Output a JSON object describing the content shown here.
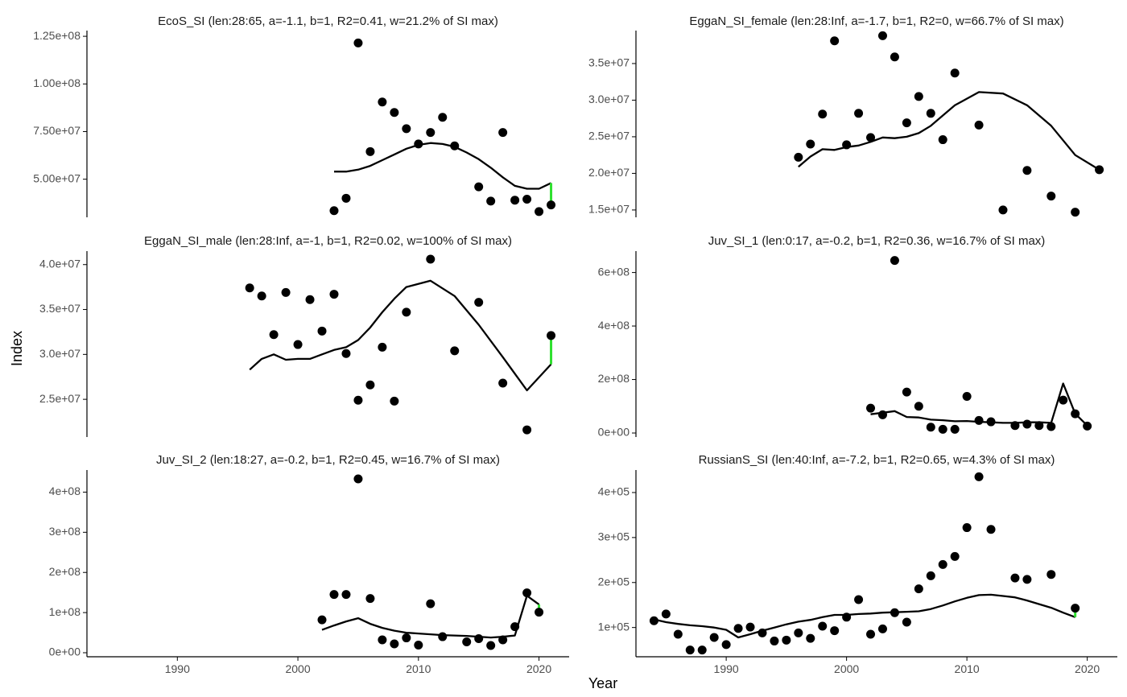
{
  "figure": {
    "ylabel": "Index",
    "xlabel": "Year",
    "colors": {
      "points": "#000000",
      "fit_line": "#000000",
      "last_residual": "#2ee02e"
    }
  },
  "chart_data": [
    {
      "type": "scatter",
      "title": "EcoS_SI (len:28:65, a=-1.1, b=1, R2=0.41, w=21.2% of SI max)",
      "xlim": [
        1982.5,
        2022.5
      ],
      "ylim": [
        30000000,
        128000000
      ],
      "y_ticks": [
        50000000,
        75000000,
        100000000,
        125000000
      ],
      "y_tick_labels": [
        "5.00e+07",
        "7.50e+07",
        "1.00e+08",
        "1.25e+08"
      ],
      "x_ticks": [],
      "x_tick_labels": [],
      "series": [
        {
          "name": "observed",
          "type": "scatter",
          "x": [
            2003,
            2004,
            2005,
            2006,
            2007,
            2008,
            2009,
            2010,
            2011,
            2012,
            2013,
            2015,
            2016,
            2017,
            2018,
            2019,
            2020,
            2021
          ],
          "y": [
            33500000,
            40000000,
            121500000,
            64500000,
            90500000,
            85000000,
            76500000,
            68500000,
            74500000,
            82500000,
            67500000,
            46000000,
            38500000,
            74500000,
            39000000,
            39500000,
            33000000,
            36500000
          ]
        },
        {
          "name": "fitted",
          "type": "line",
          "x": [
            2003,
            2004,
            2005,
            2006,
            2007,
            2008,
            2009,
            2010,
            2011,
            2012,
            2013,
            2014,
            2015,
            2016,
            2017,
            2018,
            2019,
            2020,
            2021
          ],
          "y": [
            54000000,
            54000000,
            55000000,
            57000000,
            60000000,
            63000000,
            66000000,
            68000000,
            69000000,
            68500000,
            67000000,
            64000000,
            60500000,
            56000000,
            51000000,
            46500000,
            45000000,
            45000000,
            48000000
          ]
        }
      ],
      "last_residual": {
        "x": 2021,
        "y_from": 48000000,
        "y_to": 36500000
      }
    },
    {
      "type": "scatter",
      "title": "EggaN_SI_female (len:28:Inf, a=-1.7, b=1, R2=0, w=66.7% of SI max)",
      "xlim": [
        1982.5,
        2022.5
      ],
      "ylim": [
        14000000,
        39500000
      ],
      "y_ticks": [
        15000000,
        20000000,
        25000000,
        30000000,
        35000000
      ],
      "y_tick_labels": [
        "1.5e+07",
        "2.0e+07",
        "2.5e+07",
        "3.0e+07",
        "3.5e+07"
      ],
      "x_ticks": [],
      "x_tick_labels": [],
      "series": [
        {
          "name": "observed",
          "type": "scatter",
          "x": [
            1996,
            1997,
            1998,
            1999,
            2000,
            2001,
            2002,
            2003,
            2004,
            2005,
            2006,
            2007,
            2008,
            2009,
            2011,
            2013,
            2015,
            2017,
            2019,
            2021
          ],
          "y": [
            22200000,
            24000000,
            28100000,
            38100000,
            23900000,
            28200000,
            24900000,
            38800000,
            35900000,
            26900000,
            30500000,
            28200000,
            24600000,
            33700000,
            26600000,
            15000000,
            20400000,
            16900000,
            14700000,
            20500000
          ]
        },
        {
          "name": "fitted",
          "type": "line",
          "x": [
            1996,
            1997,
            1998,
            1999,
            2000,
            2001,
            2002,
            2003,
            2004,
            2005,
            2006,
            2007,
            2008,
            2009,
            2011,
            2013,
            2015,
            2017,
            2019,
            2021
          ],
          "y": [
            20900000,
            22300000,
            23300000,
            23200000,
            23600000,
            23800000,
            24300000,
            24900000,
            24800000,
            25000000,
            25500000,
            26500000,
            27900000,
            29300000,
            31100000,
            30900000,
            29300000,
            26500000,
            22500000,
            20500000
          ]
        }
      ],
      "last_residual": null
    },
    {
      "type": "scatter",
      "title": "EggaN_SI_male (len:28:Inf, a=-1, b=1, R2=0.02, w=100% of SI max)",
      "xlim": [
        1982.5,
        2022.5
      ],
      "ylim": [
        20800000,
        41500000
      ],
      "y_ticks": [
        25000000,
        30000000,
        35000000,
        40000000
      ],
      "y_tick_labels": [
        "2.5e+07",
        "3.0e+07",
        "3.5e+07",
        "4.0e+07"
      ],
      "x_ticks": [],
      "x_tick_labels": [],
      "series": [
        {
          "name": "observed",
          "type": "scatter",
          "x": [
            1996,
            1997,
            1998,
            1999,
            2000,
            2001,
            2002,
            2003,
            2004,
            2005,
            2006,
            2007,
            2008,
            2009,
            2011,
            2013,
            2015,
            2017,
            2019,
            2021
          ],
          "y": [
            37400000,
            36500000,
            32200000,
            36900000,
            31100000,
            36100000,
            32600000,
            36700000,
            30100000,
            24900000,
            26600000,
            30800000,
            24800000,
            34700000,
            40600000,
            30400000,
            35800000,
            26800000,
            21600000,
            32100000
          ]
        },
        {
          "name": "fitted",
          "type": "line",
          "x": [
            1996,
            1997,
            1998,
            1999,
            2000,
            2001,
            2002,
            2003,
            2004,
            2005,
            2006,
            2007,
            2008,
            2009,
            2011,
            2013,
            2015,
            2017,
            2019,
            2021
          ],
          "y": [
            28300000,
            29500000,
            30000000,
            29400000,
            29500000,
            29500000,
            30000000,
            30500000,
            30800000,
            31600000,
            33000000,
            34700000,
            36200000,
            37500000,
            38200000,
            36500000,
            33300000,
            29700000,
            26000000,
            28900000
          ]
        }
      ],
      "last_residual": {
        "x": 2021,
        "y_from": 28900000,
        "y_to": 32100000
      }
    },
    {
      "type": "scatter",
      "title": "Juv_SI_1 (len:0:17, a=-0.2, b=1, R2=0.36, w=16.7% of SI max)",
      "xlim": [
        1982.5,
        2022.5
      ],
      "ylim": [
        -15000000,
        680000000
      ],
      "y_ticks": [
        0,
        200000000,
        400000000,
        600000000
      ],
      "y_tick_labels": [
        "0e+00",
        "2e+08",
        "4e+08",
        "6e+08"
      ],
      "x_ticks": [],
      "x_tick_labels": [],
      "series": [
        {
          "name": "observed",
          "type": "scatter",
          "x": [
            2002,
            2003,
            2004,
            2005,
            2006,
            2007,
            2008,
            2009,
            2010,
            2011,
            2012,
            2014,
            2015,
            2016,
            2017,
            2018,
            2019,
            2020
          ],
          "y": [
            93000000,
            68000000,
            645000000,
            153000000,
            100000000,
            22000000,
            14000000,
            14000000,
            137000000,
            47000000,
            42000000,
            28000000,
            33000000,
            28000000,
            24000000,
            123000000,
            72000000,
            26000000
          ]
        },
        {
          "name": "fitted",
          "type": "line",
          "x": [
            2002,
            2003,
            2004,
            2005,
            2006,
            2007,
            2008,
            2009,
            2010,
            2011,
            2012,
            2013,
            2014,
            2015,
            2016,
            2017,
            2018,
            2019,
            2020
          ],
          "y": [
            70000000,
            76000000,
            82000000,
            60000000,
            58000000,
            50000000,
            48000000,
            44000000,
            45000000,
            42000000,
            40000000,
            38000000,
            38000000,
            40000000,
            40000000,
            38000000,
            185000000,
            72000000,
            28000000
          ]
        }
      ],
      "last_residual": null
    },
    {
      "type": "scatter",
      "title": "Juv_SI_2 (len:18:27, a=-0.2, b=1, R2=0.45, w=16.7% of SI max)",
      "xlim": [
        1982.5,
        2022.5
      ],
      "ylim": [
        -10000000,
        455000000
      ],
      "y_ticks": [
        0,
        100000000,
        200000000,
        300000000,
        400000000
      ],
      "y_tick_labels": [
        "0e+00",
        "1e+08",
        "2e+08",
        "3e+08",
        "4e+08"
      ],
      "x_ticks": [
        1990,
        2000,
        2010,
        2020
      ],
      "x_tick_labels": [
        "1990",
        "2000",
        "2010",
        "2020"
      ],
      "series": [
        {
          "name": "observed",
          "type": "scatter",
          "x": [
            2002,
            2003,
            2004,
            2005,
            2006,
            2007,
            2008,
            2009,
            2010,
            2011,
            2012,
            2014,
            2015,
            2016,
            2017,
            2018,
            2019,
            2020
          ],
          "y": [
            82000000,
            145000000,
            145000000,
            433000000,
            135000000,
            32000000,
            22000000,
            37000000,
            19000000,
            122000000,
            40000000,
            27000000,
            35000000,
            18000000,
            32000000,
            65000000,
            149000000,
            101000000
          ]
        },
        {
          "name": "fitted",
          "type": "line",
          "x": [
            2002,
            2003,
            2004,
            2005,
            2006,
            2007,
            2008,
            2009,
            2010,
            2011,
            2012,
            2013,
            2014,
            2015,
            2016,
            2017,
            2018,
            2019,
            2020
          ],
          "y": [
            57000000,
            68000000,
            78000000,
            86000000,
            72000000,
            62000000,
            55000000,
            50000000,
            48000000,
            46000000,
            44000000,
            43000000,
            42000000,
            40000000,
            38000000,
            40000000,
            43000000,
            142000000,
            120000000
          ]
        }
      ],
      "last_residual": {
        "x": 2020,
        "y_from": 120000000,
        "y_to": 101000000
      }
    },
    {
      "type": "scatter",
      "title": "RussianS_SI (len:40:Inf, a=-7.2, b=1, R2=0.65, w=4.3% of SI max)",
      "xlim": [
        1982.5,
        2022.5
      ],
      "ylim": [
        35000,
        450000
      ],
      "y_ticks": [
        100000,
        200000,
        300000,
        400000
      ],
      "y_tick_labels": [
        "1e+05",
        "2e+05",
        "3e+05",
        "4e+05"
      ],
      "x_ticks": [
        1990,
        2000,
        2010,
        2020
      ],
      "x_tick_labels": [
        "1990",
        "2000",
        "2010",
        "2020"
      ],
      "series": [
        {
          "name": "observed",
          "type": "scatter",
          "x": [
            1984,
            1985,
            1986,
            1987,
            1988,
            1989,
            1990,
            1991,
            1992,
            1993,
            1994,
            1995,
            1996,
            1997,
            1998,
            1999,
            2000,
            2001,
            2002,
            2003,
            2004,
            2005,
            2006,
            2007,
            2008,
            2009,
            2010,
            2011,
            2012,
            2014,
            2015,
            2017,
            2019
          ],
          "y": [
            115000,
            130000,
            85000,
            50000,
            50000,
            78000,
            62000,
            98000,
            101000,
            88000,
            70000,
            72000,
            88000,
            76000,
            103000,
            93000,
            123000,
            162000,
            85000,
            97000,
            133000,
            112000,
            186000,
            215000,
            240000,
            258000,
            322000,
            435000,
            318000,
            210000,
            207000,
            218000,
            143000
          ]
        },
        {
          "name": "fitted",
          "type": "line",
          "x": [
            1984,
            1985,
            1986,
            1987,
            1988,
            1989,
            1990,
            1991,
            1992,
            1993,
            1994,
            1995,
            1996,
            1997,
            1998,
            1999,
            2000,
            2001,
            2002,
            2003,
            2004,
            2005,
            2006,
            2007,
            2008,
            2009,
            2010,
            2011,
            2012,
            2013,
            2014,
            2015,
            2016,
            2017,
            2018,
            2019
          ],
          "y": [
            118000,
            112000,
            108000,
            105000,
            103000,
            100000,
            95000,
            78000,
            85000,
            93000,
            100000,
            107000,
            113000,
            117000,
            123000,
            128000,
            128000,
            130000,
            131000,
            133000,
            134000,
            135000,
            136000,
            141000,
            149000,
            158000,
            166000,
            172000,
            173000,
            170000,
            167000,
            160000,
            152000,
            144000,
            133000,
            123000
          ]
        }
      ],
      "last_residual": {
        "x": 2019,
        "y_from": 123000,
        "y_to": 143000
      }
    }
  ]
}
